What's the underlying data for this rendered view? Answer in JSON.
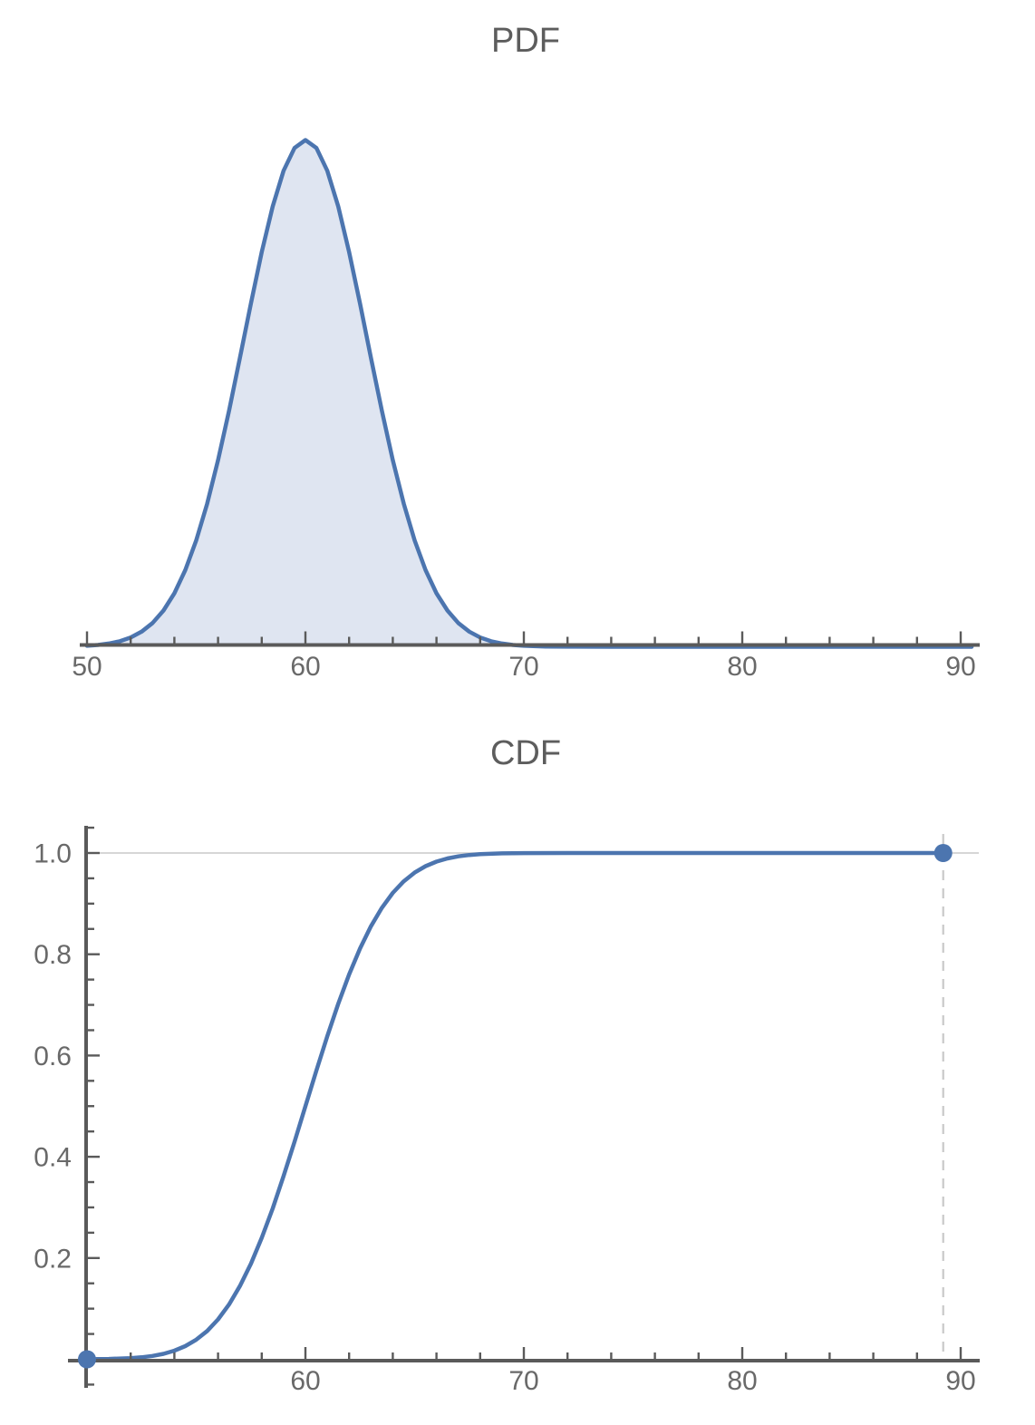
{
  "colors": {
    "curve_blue": "#4c75af",
    "area_fill": "#dfe5f1",
    "axis_gray": "#5a5a5a",
    "label_gray": "#696969",
    "title_gray": "#5d5d5d",
    "grid_gray": "#c9c9c9",
    "background": "#ffffff"
  },
  "chart_data": [
    {
      "type": "area",
      "title": "PDF",
      "xlim": [
        49.7,
        91
      ],
      "ylim": [
        0,
        0.15
      ],
      "x_ticks_major": [
        50,
        60,
        70,
        80,
        90
      ],
      "x_tick_labels": [
        "50",
        "60",
        "70",
        "80",
        "90"
      ],
      "x_minor_step": 2,
      "grid": false,
      "x": [
        50,
        50.5,
        51,
        51.5,
        52,
        52.5,
        53,
        53.5,
        54,
        54.5,
        55,
        55.5,
        56,
        56.5,
        57,
        57.5,
        58,
        58.5,
        59,
        59.5,
        60,
        60.5,
        61,
        61.5,
        62,
        62.5,
        63,
        63.5,
        64,
        64.5,
        65,
        65.5,
        66,
        66.5,
        67,
        67.5,
        68,
        68.5,
        69,
        69.5,
        70,
        71,
        72,
        74,
        76,
        78,
        80,
        82,
        84,
        86,
        88,
        90,
        90.5
      ],
      "y": [
        0.00027,
        0.0005,
        0.0009,
        0.00155,
        0.0026,
        0.0042,
        0.00661,
        0.01009,
        0.01489,
        0.02132,
        0.0296,
        0.03983,
        0.05192,
        0.06562,
        0.08038,
        0.09544,
        0.10983,
        0.12251,
        0.13245,
        0.1388,
        0.14099,
        0.1388,
        0.13245,
        0.12251,
        0.10983,
        0.09544,
        0.08038,
        0.06562,
        0.05192,
        0.03983,
        0.0296,
        0.02132,
        0.01489,
        0.01009,
        0.00661,
        0.0042,
        0.0026,
        0.00155,
        0.0009,
        0.0005,
        0.00027,
        7e-05,
        2e-05,
        0,
        0,
        0,
        0,
        0,
        0,
        0,
        0,
        0,
        0
      ]
    },
    {
      "type": "line",
      "title": "CDF",
      "xlim": [
        49.1,
        91
      ],
      "ylim": [
        0,
        1.05
      ],
      "x_ticks_major": [
        60,
        70,
        80,
        90
      ],
      "x_tick_labels": [
        "60",
        "70",
        "80",
        "90"
      ],
      "x_minor_step": 2,
      "y_ticks_major": [
        0.2,
        0.4,
        0.6,
        0.8,
        1.0
      ],
      "y_tick_labels": [
        "0.2",
        "0.4",
        "0.6",
        "0.8",
        "1.0"
      ],
      "y_minor_step": 0.05,
      "gridlines_y": [
        1.0
      ],
      "dashed_marker_x": 89.2,
      "points": [
        {
          "x": 50,
          "y": 0
        },
        {
          "x": 89.2,
          "y": 1
        }
      ],
      "x": [
        50,
        51,
        52,
        52.5,
        53,
        53.5,
        54,
        54.5,
        55,
        55.5,
        56,
        56.5,
        57,
        57.5,
        58,
        58.5,
        59,
        59.5,
        60,
        60.5,
        61,
        61.5,
        62,
        62.5,
        63,
        63.5,
        64,
        64.5,
        65,
        65.5,
        66,
        66.5,
        67,
        67.5,
        68,
        69,
        70,
        72,
        75,
        80,
        85,
        89.2
      ],
      "y": [
        0.0002,
        0.0007,
        0.0024,
        0.004,
        0.0067,
        0.0108,
        0.017,
        0.026,
        0.0386,
        0.0559,
        0.0788,
        0.1081,
        0.1446,
        0.1886,
        0.2399,
        0.298,
        0.362,
        0.4298,
        0.5,
        0.5702,
        0.638,
        0.702,
        0.7601,
        0.8114,
        0.8554,
        0.8919,
        0.9212,
        0.9441,
        0.9614,
        0.974,
        0.983,
        0.9892,
        0.9933,
        0.996,
        0.9977,
        0.9993,
        0.9998,
        1,
        1,
        1,
        1,
        1
      ]
    }
  ]
}
